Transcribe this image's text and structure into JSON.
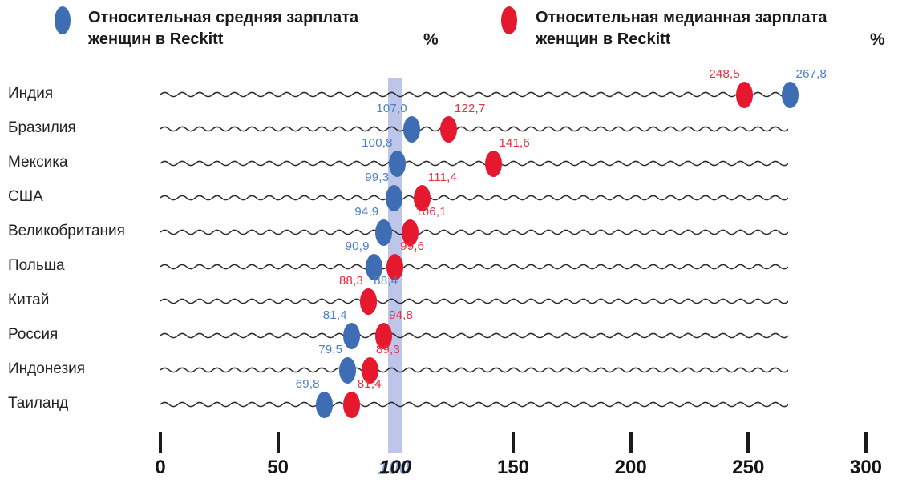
{
  "legend": {
    "items": [
      {
        "series": "mean",
        "label_line1": "Относительная средняя зарплата",
        "label_line2": "женщин в Reckitt",
        "unit": "%",
        "color": "#3E6DB4"
      },
      {
        "series": "median",
        "label_line1": "Относительная медианная зарплата",
        "label_line2": "женщин в Reckitt",
        "unit": "%",
        "color": "#E5182E"
      }
    ]
  },
  "chart_data": {
    "type": "scatter",
    "subtype": "horizontal-dot-plot",
    "categories": [
      "Индия",
      "Бразилия",
      "Мексика",
      "США",
      "Великобритания",
      "Польша",
      "Китай",
      "Россия",
      "Индонезия",
      "Таиланд"
    ],
    "series": [
      {
        "name": "Относительная средняя зарплата женщин в Reckitt",
        "color": "#3E6DB4",
        "label_color": "#4A7EC8",
        "values": [
          267.8,
          107.0,
          100.8,
          99.3,
          94.9,
          90.9,
          88.4,
          81.4,
          79.5,
          69.8
        ],
        "labels": [
          "267,8",
          "107,0",
          "100,8",
          "99,3",
          "94,9",
          "90,9",
          "88,4",
          "81,4",
          "79,5",
          "69,8"
        ]
      },
      {
        "name": "Относительная медианная зарплата женщин в Reckitt",
        "color": "#E5182E",
        "label_color": "#EC2E3E",
        "values": [
          248.5,
          122.7,
          141.6,
          111.4,
          106.1,
          99.6,
          88.3,
          94.8,
          89.3,
          81.4
        ],
        "labels": [
          "248,5",
          "122,7",
          "141,6",
          "111,4",
          "106,1",
          "99,6",
          "88,3",
          "94,8",
          "89,3",
          "81,4"
        ]
      }
    ],
    "unit": "%",
    "xlim": [
      0,
      300
    ],
    "x_ticks": [
      0,
      50,
      100,
      150,
      200,
      250,
      300
    ],
    "x_tick_labels": [
      "0",
      "50",
      "100",
      "150",
      "200",
      "250",
      "300"
    ],
    "reference_band_x": 100,
    "reference_band_color": "#bdc6e8",
    "grid": "wavy horizontal line per category",
    "legend_position": "top"
  }
}
